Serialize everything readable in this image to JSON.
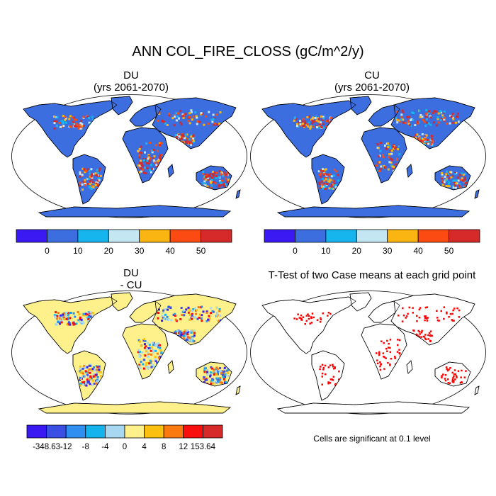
{
  "figure": {
    "title": "ANN COL_FIRE_CLOSS (gC/m^2/y)"
  },
  "panels": [
    {
      "title": "DU",
      "subtitle": "(yrs 2061-2070)"
    },
    {
      "title": "CU",
      "subtitle": "(yrs 2061-2070)"
    },
    {
      "title": "DU",
      "subtitle": "- CU"
    },
    {
      "title": "T-Test of two Case means at each grid point",
      "subtitle": ""
    }
  ],
  "colorbar_abs": {
    "colors": [
      "#3a19f2",
      "#3c6ee0",
      "#16b5ee",
      "#c4e6f3",
      "#fbb512",
      "#fb4b12",
      "#d62a2a"
    ],
    "labels": [
      "0",
      "10",
      "20",
      "30",
      "40",
      "50"
    ]
  },
  "colorbar_diff": {
    "colors": [
      "#3a19f2",
      "#3c4fe4",
      "#2e8ff0",
      "#15b3ee",
      "#a7d7f1",
      "#fef08a",
      "#fbc010",
      "#fb7a10",
      "#fa0f0f",
      "#d62a2a"
    ],
    "labels": [
      "-348.63",
      "-12",
      "-8",
      "-4",
      "0",
      "4",
      "8",
      "12",
      "153.64"
    ]
  },
  "map_colors": {
    "ocean": "#ffffff",
    "land_abs": "#3c6ee0",
    "land_diff": "#fef08a",
    "land_ttest": "#ffffff",
    "significant": "#ff0000",
    "outline": "#000000"
  },
  "significance_note": "Cells are significant at 0.1 level"
}
